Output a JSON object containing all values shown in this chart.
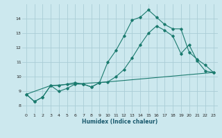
{
  "title": "",
  "xlabel": "Humidex (Indice chaleur)",
  "xlim": [
    -0.5,
    23.5
  ],
  "ylim": [
    7.5,
    15.0
  ],
  "yticks": [
    8,
    9,
    10,
    11,
    12,
    13,
    14
  ],
  "xticks": [
    0,
    1,
    2,
    3,
    4,
    5,
    6,
    7,
    8,
    9,
    10,
    11,
    12,
    13,
    14,
    15,
    16,
    17,
    18,
    19,
    20,
    21,
    22,
    23
  ],
  "background_color": "#cce8ee",
  "grid_color": "#aacdd6",
  "line_color": "#1a7a6e",
  "line1_y": [
    8.8,
    8.3,
    8.6,
    9.4,
    9.4,
    9.5,
    9.6,
    9.5,
    9.3,
    9.6,
    11.0,
    11.8,
    12.8,
    13.9,
    14.1,
    14.6,
    14.1,
    13.6,
    13.3,
    13.3,
    11.7,
    11.2,
    10.8,
    10.3
  ],
  "line2_y": [
    8.8,
    8.3,
    8.6,
    9.4,
    9.0,
    9.2,
    9.5,
    9.5,
    9.3,
    9.6,
    9.65,
    10.0,
    10.5,
    11.3,
    12.2,
    13.0,
    13.5,
    13.2,
    12.8,
    11.6,
    12.2,
    11.1,
    10.4,
    10.3
  ],
  "line3_x": [
    0,
    3,
    10,
    23
  ],
  "line3_y": [
    8.8,
    9.4,
    9.65,
    10.3
  ]
}
